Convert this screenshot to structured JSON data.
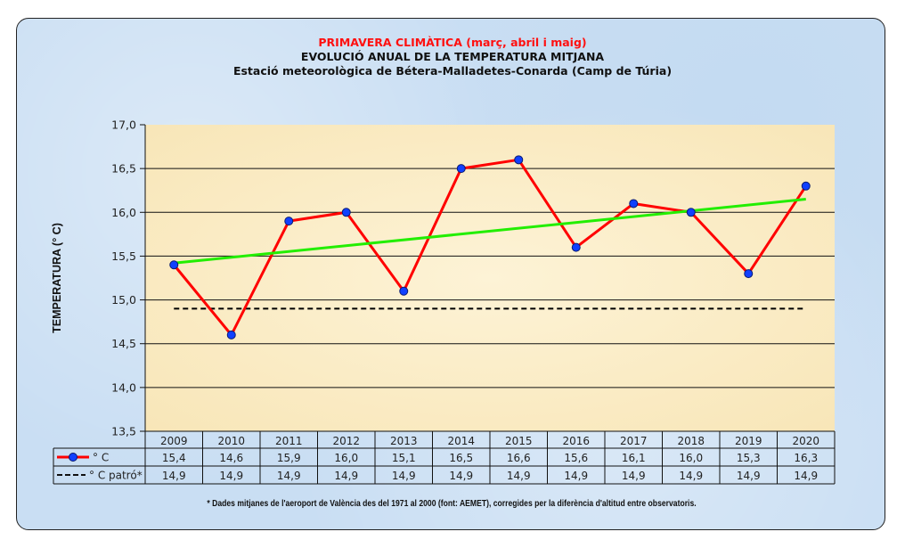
{
  "chart_data": {
    "type": "line",
    "title": "PRIMAVERA CLIMÀTICA (març, abril i maig)",
    "subtitle": "EVOLUCIÓ ANUAL DE LA TEMPERATURA MITJANA",
    "subtitle2": "Estació meteorològica de Bétera-Malladetes-Conarda (Camp de Túria)",
    "xlabel": "",
    "ylabel": "TEMPERATURA (° C)",
    "ylim": [
      13.5,
      17.0
    ],
    "yticks": [
      "13,5",
      "14,0",
      "14,5",
      "15,0",
      "15,5",
      "16,0",
      "16,5",
      "17,0"
    ],
    "ytick_values": [
      13.5,
      14.0,
      14.5,
      15.0,
      15.5,
      16.0,
      16.5,
      17.0
    ],
    "grid": true,
    "categories": [
      "2009",
      "2010",
      "2011",
      "2012",
      "2013",
      "2014",
      "2015",
      "2016",
      "2017",
      "2018",
      "2019",
      "2020"
    ],
    "series": [
      {
        "name": "° C",
        "color": "#ff0000",
        "marker_color": "#1040ff",
        "style": "solid-with-markers",
        "values": [
          15.4,
          14.6,
          15.9,
          16.0,
          15.1,
          16.5,
          16.6,
          15.6,
          16.1,
          16.0,
          15.3,
          16.3
        ],
        "labels": [
          "15,4",
          "14,6",
          "15,9",
          "16,0",
          "15,1",
          "16,5",
          "16,6",
          "15,6",
          "16,1",
          "16,0",
          "15,3",
          "16,3"
        ]
      },
      {
        "name": "° C  patró*",
        "color": "#000000",
        "style": "dashed",
        "values": [
          14.9,
          14.9,
          14.9,
          14.9,
          14.9,
          14.9,
          14.9,
          14.9,
          14.9,
          14.9,
          14.9,
          14.9
        ],
        "labels": [
          "14,9",
          "14,9",
          "14,9",
          "14,9",
          "14,9",
          "14,9",
          "14,9",
          "14,9",
          "14,9",
          "14,9",
          "14,9",
          "14,9"
        ]
      }
    ],
    "trendline": {
      "color": "#22ee00",
      "start": 15.42,
      "end": 16.15
    },
    "legend": "data-table-bottom",
    "footnote": "* Dades mitjanes de l'aeroport de València des del 1971 al 2000 (font: AEMET), corregides per la diferència d'altitud entre observatoris."
  }
}
